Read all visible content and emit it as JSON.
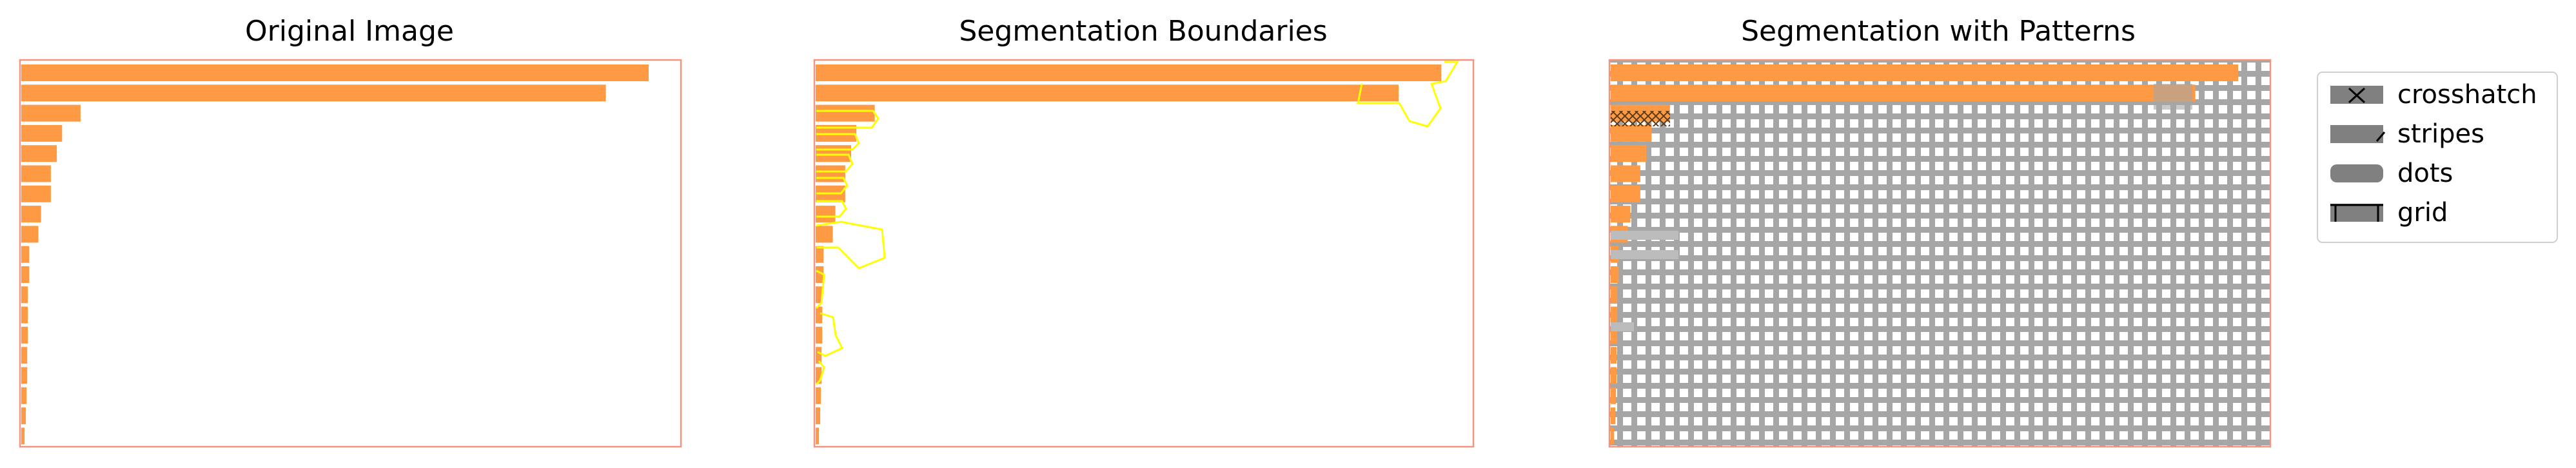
{
  "chart_data": [
    {
      "type": "bar",
      "orientation": "horizontal",
      "title": "Original Image",
      "values": [
        0.953,
        0.888,
        0.09,
        0.062,
        0.054,
        0.045,
        0.045,
        0.03,
        0.026,
        0.012,
        0.012,
        0.01,
        0.01,
        0.01,
        0.009,
        0.009,
        0.008,
        0.007,
        0.005
      ],
      "bar_color": "#fd9a43",
      "frame_color": "#f2947f",
      "grid": false,
      "axes_visible": false
    },
    {
      "type": "bar",
      "orientation": "horizontal",
      "title": "Segmentation Boundaries",
      "values": [
        0.953,
        0.888,
        0.09,
        0.062,
        0.054,
        0.045,
        0.045,
        0.03,
        0.026,
        0.012,
        0.012,
        0.01,
        0.01,
        0.01,
        0.009,
        0.009,
        0.008,
        0.007,
        0.005
      ],
      "bar_color": "#fd9a43",
      "boundary_color": "#ffff00",
      "frame_color": "#f2947f",
      "grid": false,
      "axes_visible": false
    },
    {
      "type": "bar",
      "orientation": "horizontal",
      "title": "Segmentation with Patterns",
      "values": [
        0.953,
        0.888,
        0.09,
        0.062,
        0.054,
        0.045,
        0.045,
        0.03,
        0.026,
        0.012,
        0.012,
        0.01,
        0.01,
        0.01,
        0.009,
        0.009,
        0.008,
        0.007,
        0.005
      ],
      "bar_color": "#fd9a43",
      "pattern_color": "#9a9a9a",
      "frame_color": "#f2947f",
      "grid": false,
      "axes_visible": false,
      "legend": {
        "placement": "right",
        "entries": [
          {
            "label": "crosshatch",
            "pattern": "crosshatch"
          },
          {
            "label": "stripes",
            "pattern": "stripes"
          },
          {
            "label": "dots",
            "pattern": "dots"
          },
          {
            "label": "grid",
            "pattern": "grid"
          }
        ],
        "swatch_color": "#808080"
      }
    }
  ]
}
